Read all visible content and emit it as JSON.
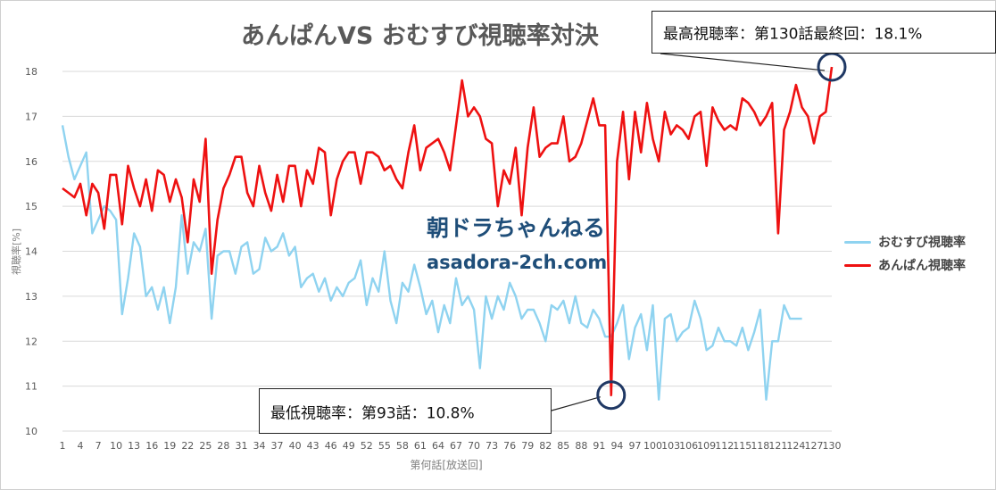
{
  "chart_data": {
    "type": "line",
    "title": "あんぱんVS おむすび視聴率対決",
    "xlabel": "第何話[放送回]",
    "ylabel": "視聴率[%]",
    "ylim": [
      10,
      18
    ],
    "yticks": [
      10,
      11,
      12,
      13,
      14,
      15,
      16,
      17,
      18
    ],
    "xlim": [
      1,
      130
    ],
    "xticks": [
      1,
      4,
      7,
      10,
      13,
      16,
      19,
      22,
      25,
      28,
      31,
      34,
      37,
      40,
      43,
      46,
      49,
      52,
      55,
      58,
      61,
      64,
      67,
      70,
      73,
      76,
      79,
      82,
      85,
      88,
      91,
      94,
      97,
      100,
      103,
      106,
      109,
      112,
      115,
      118,
      121,
      124,
      127,
      130
    ],
    "grid": "horizontal",
    "legend_position": "right",
    "series": [
      {
        "name": "おむすび視聴率",
        "color": "#8fd3f0",
        "values": [
          16.8,
          16.1,
          15.6,
          15.9,
          16.2,
          14.4,
          14.7,
          15.0,
          14.9,
          14.7,
          12.6,
          13.4,
          14.4,
          14.1,
          13.0,
          13.2,
          12.7,
          13.2,
          12.4,
          13.2,
          14.8,
          13.5,
          14.2,
          14.0,
          14.5,
          12.5,
          13.9,
          14.0,
          14.0,
          13.5,
          14.1,
          14.2,
          13.5,
          13.6,
          14.3,
          14.0,
          14.1,
          14.4,
          13.9,
          14.1,
          13.2,
          13.4,
          13.5,
          13.1,
          13.4,
          12.9,
          13.2,
          13.0,
          13.3,
          13.4,
          13.8,
          12.8,
          13.4,
          13.1,
          14.0,
          12.9,
          12.4,
          13.3,
          13.1,
          13.7,
          13.2,
          12.6,
          12.9,
          12.2,
          12.8,
          12.4,
          13.4,
          12.8,
          13.0,
          12.7,
          11.4,
          13.0,
          12.5,
          13.0,
          12.7,
          13.3,
          13.0,
          12.5,
          12.7,
          12.7,
          12.4,
          12.0,
          12.8,
          12.7,
          12.9,
          12.4,
          13.0,
          12.4,
          12.3,
          12.7,
          12.5,
          12.1,
          12.1,
          12.4,
          12.8,
          11.6,
          12.3,
          12.6,
          11.8,
          12.8,
          10.7,
          12.5,
          12.6,
          12.0,
          12.2,
          12.3,
          12.9,
          12.5,
          11.8,
          11.9,
          12.3,
          12.0,
          12.0,
          11.9,
          12.3,
          11.8,
          12.2,
          12.7,
          10.7,
          12.0,
          12.0,
          12.8,
          12.5,
          12.5,
          12.5
        ],
        "last_episode": 125
      },
      {
        "name": "あんぱん視聴率",
        "color": "#ee1111",
        "values": [
          15.4,
          15.3,
          15.2,
          15.5,
          14.8,
          15.5,
          15.3,
          14.5,
          15.7,
          15.7,
          14.6,
          15.9,
          15.4,
          15.0,
          15.6,
          14.9,
          15.8,
          15.7,
          15.1,
          15.6,
          15.2,
          14.2,
          15.6,
          15.1,
          16.5,
          13.5,
          14.7,
          15.4,
          15.7,
          16.1,
          16.1,
          15.3,
          15.0,
          15.9,
          15.3,
          14.9,
          15.7,
          15.1,
          15.9,
          15.9,
          15.0,
          15.8,
          15.5,
          16.3,
          16.2,
          14.8,
          15.6,
          16.0,
          16.2,
          16.2,
          15.5,
          16.2,
          16.2,
          16.1,
          15.8,
          15.9,
          15.6,
          15.4,
          16.2,
          16.8,
          15.8,
          16.3,
          16.4,
          16.5,
          16.2,
          15.8,
          16.8,
          17.8,
          17.0,
          17.2,
          17.0,
          16.5,
          16.4,
          15.0,
          15.8,
          15.5,
          16.3,
          14.8,
          16.3,
          17.2,
          16.1,
          16.3,
          16.4,
          16.4,
          17.0,
          16.0,
          16.1,
          16.4,
          16.9,
          17.4,
          16.8,
          16.8,
          10.8,
          16.0,
          17.1,
          15.6,
          17.1,
          16.2,
          17.3,
          16.5,
          16.0,
          17.1,
          16.6,
          16.8,
          16.7,
          16.5,
          17.0,
          17.1,
          15.9,
          17.2,
          16.9,
          16.7,
          16.8,
          16.7,
          17.4,
          17.3,
          17.1,
          16.8,
          17.0,
          17.3,
          14.4,
          16.7,
          17.1,
          17.7,
          17.2,
          17.0,
          16.4,
          17.0,
          17.1,
          18.1
        ]
      }
    ],
    "annotations": [
      {
        "text": "最高視聴率：第130話最終回：18.1%",
        "episode": 130,
        "value": 18.1
      },
      {
        "text": "最低視聴率：第93話：10.8%",
        "episode": 93,
        "value": 10.8
      }
    ],
    "watermark": [
      "朝ドラちゃんねる",
      "asadora-2ch.com"
    ]
  }
}
